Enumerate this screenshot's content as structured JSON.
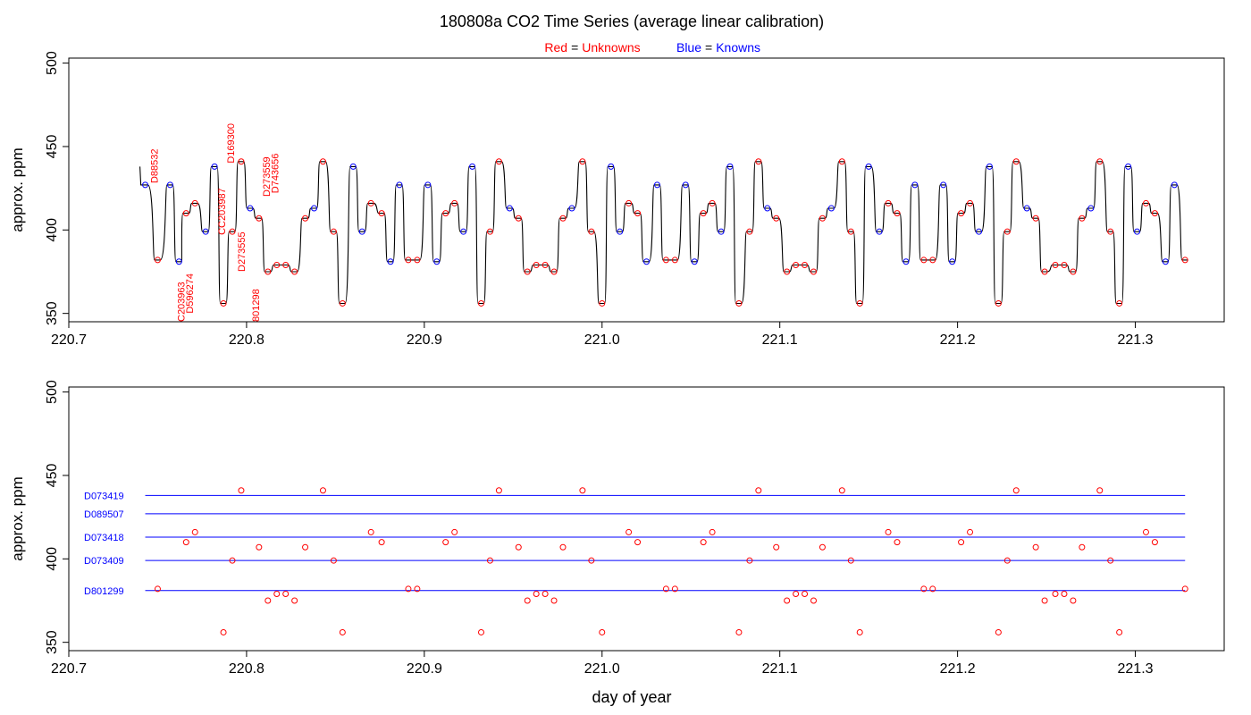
{
  "title": "180808a   CO2 Time Series (average linear calibration)",
  "subtitle": {
    "red_label": "Red",
    "red_text": "Unknowns",
    "blue_label": "Blue",
    "blue_text": "Knowns",
    "equals": "="
  },
  "colors": {
    "unknown": "#ff0000",
    "known": "#0000ff",
    "trace": "#000000"
  },
  "chart_data": [
    {
      "type": "line",
      "panel": "top",
      "xlabel": "",
      "ylabel": "approx. ppm",
      "xlim": [
        220.7,
        221.35
      ],
      "ylim": [
        345,
        503
      ],
      "x_ticks": [
        "220.7",
        "220.8",
        "220.9",
        "221.0",
        "221.1",
        "221.2",
        "221.3"
      ],
      "y_ticks": [
        "350",
        "400",
        "450",
        "500"
      ],
      "grid": false,
      "legend": "none",
      "sequence": [
        {
          "x": 220.743,
          "y": 427,
          "kind": "known"
        },
        {
          "x": 220.75,
          "y": 382,
          "kind": "unknown"
        },
        {
          "x": 220.757,
          "y": 427,
          "kind": "known"
        },
        {
          "x": 220.762,
          "y": 381,
          "kind": "known"
        },
        {
          "x": 220.766,
          "y": 410,
          "kind": "unknown"
        },
        {
          "x": 220.771,
          "y": 416,
          "kind": "unknown"
        },
        {
          "x": 220.777,
          "y": 399,
          "kind": "known"
        },
        {
          "x": 220.782,
          "y": 438,
          "kind": "known"
        },
        {
          "x": 220.787,
          "y": 356,
          "kind": "unknown"
        },
        {
          "x": 220.792,
          "y": 399,
          "kind": "unknown"
        },
        {
          "x": 220.797,
          "y": 441,
          "kind": "unknown"
        },
        {
          "x": 220.802,
          "y": 413,
          "kind": "known"
        },
        {
          "x": 220.807,
          "y": 407,
          "kind": "unknown"
        },
        {
          "x": 220.812,
          "y": 375,
          "kind": "unknown"
        },
        {
          "x": 220.817,
          "y": 379,
          "kind": "unknown"
        },
        {
          "x": 220.822,
          "y": 379,
          "kind": "unknown"
        },
        {
          "x": 220.827,
          "y": 375,
          "kind": "unknown"
        },
        {
          "x": 220.833,
          "y": 407,
          "kind": "unknown"
        },
        {
          "x": 220.838,
          "y": 413,
          "kind": "known"
        },
        {
          "x": 220.843,
          "y": 441,
          "kind": "unknown"
        },
        {
          "x": 220.849,
          "y": 399,
          "kind": "unknown"
        },
        {
          "x": 220.854,
          "y": 356,
          "kind": "unknown"
        },
        {
          "x": 220.86,
          "y": 438,
          "kind": "known"
        },
        {
          "x": 220.865,
          "y": 399,
          "kind": "known"
        },
        {
          "x": 220.87,
          "y": 416,
          "kind": "unknown"
        },
        {
          "x": 220.876,
          "y": 410,
          "kind": "unknown"
        },
        {
          "x": 220.881,
          "y": 381,
          "kind": "known"
        },
        {
          "x": 220.886,
          "y": 427,
          "kind": "known"
        },
        {
          "x": 220.891,
          "y": 382,
          "kind": "unknown"
        },
        {
          "x": 220.896,
          "y": 382,
          "kind": "unknown"
        },
        {
          "x": 220.902,
          "y": 427,
          "kind": "known"
        },
        {
          "x": 220.907,
          "y": 381,
          "kind": "known"
        },
        {
          "x": 220.912,
          "y": 410,
          "kind": "unknown"
        },
        {
          "x": 220.917,
          "y": 416,
          "kind": "unknown"
        },
        {
          "x": 220.922,
          "y": 399,
          "kind": "known"
        },
        {
          "x": 220.927,
          "y": 438,
          "kind": "known"
        },
        {
          "x": 220.932,
          "y": 356,
          "kind": "unknown"
        },
        {
          "x": 220.937,
          "y": 399,
          "kind": "unknown"
        },
        {
          "x": 220.942,
          "y": 441,
          "kind": "unknown"
        },
        {
          "x": 220.948,
          "y": 413,
          "kind": "known"
        },
        {
          "x": 220.953,
          "y": 407,
          "kind": "unknown"
        },
        {
          "x": 220.958,
          "y": 375,
          "kind": "unknown"
        },
        {
          "x": 220.963,
          "y": 379,
          "kind": "unknown"
        },
        {
          "x": 220.968,
          "y": 379,
          "kind": "unknown"
        },
        {
          "x": 220.973,
          "y": 375,
          "kind": "unknown"
        },
        {
          "x": 220.978,
          "y": 407,
          "kind": "unknown"
        },
        {
          "x": 220.983,
          "y": 413,
          "kind": "known"
        },
        {
          "x": 220.989,
          "y": 441,
          "kind": "unknown"
        },
        {
          "x": 220.994,
          "y": 399,
          "kind": "unknown"
        },
        {
          "x": 221.0,
          "y": 356,
          "kind": "unknown"
        },
        {
          "x": 221.005,
          "y": 438,
          "kind": "known"
        },
        {
          "x": 221.01,
          "y": 399,
          "kind": "known"
        },
        {
          "x": 221.015,
          "y": 416,
          "kind": "unknown"
        },
        {
          "x": 221.02,
          "y": 410,
          "kind": "unknown"
        },
        {
          "x": 221.025,
          "y": 381,
          "kind": "known"
        },
        {
          "x": 221.031,
          "y": 427,
          "kind": "known"
        },
        {
          "x": 221.036,
          "y": 382,
          "kind": "unknown"
        },
        {
          "x": 221.041,
          "y": 382,
          "kind": "unknown"
        },
        {
          "x": 221.047,
          "y": 427,
          "kind": "known"
        },
        {
          "x": 221.052,
          "y": 381,
          "kind": "known"
        },
        {
          "x": 221.057,
          "y": 410,
          "kind": "unknown"
        },
        {
          "x": 221.062,
          "y": 416,
          "kind": "unknown"
        },
        {
          "x": 221.067,
          "y": 399,
          "kind": "known"
        },
        {
          "x": 221.072,
          "y": 438,
          "kind": "known"
        },
        {
          "x": 221.077,
          "y": 356,
          "kind": "unknown"
        },
        {
          "x": 221.083,
          "y": 399,
          "kind": "unknown"
        },
        {
          "x": 221.088,
          "y": 441,
          "kind": "unknown"
        },
        {
          "x": 221.093,
          "y": 413,
          "kind": "known"
        },
        {
          "x": 221.098,
          "y": 407,
          "kind": "unknown"
        },
        {
          "x": 221.104,
          "y": 375,
          "kind": "unknown"
        },
        {
          "x": 221.109,
          "y": 379,
          "kind": "unknown"
        },
        {
          "x": 221.114,
          "y": 379,
          "kind": "unknown"
        },
        {
          "x": 221.119,
          "y": 375,
          "kind": "unknown"
        },
        {
          "x": 221.124,
          "y": 407,
          "kind": "unknown"
        },
        {
          "x": 221.129,
          "y": 413,
          "kind": "known"
        },
        {
          "x": 221.135,
          "y": 441,
          "kind": "unknown"
        },
        {
          "x": 221.14,
          "y": 399,
          "kind": "unknown"
        },
        {
          "x": 221.145,
          "y": 356,
          "kind": "unknown"
        },
        {
          "x": 221.15,
          "y": 438,
          "kind": "known"
        },
        {
          "x": 221.156,
          "y": 399,
          "kind": "known"
        },
        {
          "x": 221.161,
          "y": 416,
          "kind": "unknown"
        },
        {
          "x": 221.166,
          "y": 410,
          "kind": "unknown"
        },
        {
          "x": 221.171,
          "y": 381,
          "kind": "known"
        },
        {
          "x": 221.176,
          "y": 427,
          "kind": "known"
        },
        {
          "x": 221.181,
          "y": 382,
          "kind": "unknown"
        },
        {
          "x": 221.186,
          "y": 382,
          "kind": "unknown"
        },
        {
          "x": 221.192,
          "y": 427,
          "kind": "known"
        },
        {
          "x": 221.197,
          "y": 381,
          "kind": "known"
        },
        {
          "x": 221.202,
          "y": 410,
          "kind": "unknown"
        },
        {
          "x": 221.207,
          "y": 416,
          "kind": "unknown"
        },
        {
          "x": 221.212,
          "y": 399,
          "kind": "known"
        },
        {
          "x": 221.218,
          "y": 438,
          "kind": "known"
        },
        {
          "x": 221.223,
          "y": 356,
          "kind": "unknown"
        },
        {
          "x": 221.228,
          "y": 399,
          "kind": "unknown"
        },
        {
          "x": 221.233,
          "y": 441,
          "kind": "unknown"
        },
        {
          "x": 221.239,
          "y": 413,
          "kind": "known"
        },
        {
          "x": 221.244,
          "y": 407,
          "kind": "unknown"
        },
        {
          "x": 221.249,
          "y": 375,
          "kind": "unknown"
        },
        {
          "x": 221.255,
          "y": 379,
          "kind": "unknown"
        },
        {
          "x": 221.26,
          "y": 379,
          "kind": "unknown"
        },
        {
          "x": 221.265,
          "y": 375,
          "kind": "unknown"
        },
        {
          "x": 221.27,
          "y": 407,
          "kind": "unknown"
        },
        {
          "x": 221.275,
          "y": 413,
          "kind": "known"
        },
        {
          "x": 221.28,
          "y": 441,
          "kind": "unknown"
        },
        {
          "x": 221.286,
          "y": 399,
          "kind": "unknown"
        },
        {
          "x": 221.291,
          "y": 356,
          "kind": "unknown"
        },
        {
          "x": 221.296,
          "y": 438,
          "kind": "known"
        },
        {
          "x": 221.301,
          "y": 399,
          "kind": "known"
        },
        {
          "x": 221.306,
          "y": 416,
          "kind": "unknown"
        },
        {
          "x": 221.311,
          "y": 410,
          "kind": "unknown"
        },
        {
          "x": 221.317,
          "y": 381,
          "kind": "known"
        },
        {
          "x": 221.322,
          "y": 427,
          "kind": "known"
        },
        {
          "x": 221.328,
          "y": 382,
          "kind": "unknown"
        }
      ],
      "sample_labels": [
        {
          "text": "D88532",
          "x": 220.75,
          "y": 428
        },
        {
          "text": "C203963",
          "x": 220.765,
          "y": 345
        },
        {
          "text": "D596274",
          "x": 220.77,
          "y": 350
        },
        {
          "text": "CC203987",
          "x": 220.788,
          "y": 397
        },
        {
          "text": "D169300",
          "x": 220.793,
          "y": 440
        },
        {
          "text": "D273555",
          "x": 220.799,
          "y": 375
        },
        {
          "text": "801298",
          "x": 220.807,
          "y": 345
        },
        {
          "text": "D273559",
          "x": 220.813,
          "y": 420
        },
        {
          "text": "D743656",
          "x": 220.818,
          "y": 422
        }
      ]
    },
    {
      "type": "scatter",
      "panel": "bottom",
      "xlabel": "day of year",
      "ylabel": "approx. ppm",
      "xlim": [
        220.7,
        221.35
      ],
      "ylim": [
        345,
        503
      ],
      "x_ticks": [
        "220.7",
        "220.8",
        "220.9",
        "221.0",
        "221.1",
        "221.2",
        "221.3"
      ],
      "y_ticks": [
        "350",
        "400",
        "450",
        "500"
      ],
      "grid": false,
      "legend": "none",
      "reference_lines": [
        {
          "name": "D073419",
          "y": 438,
          "x0": 220.743,
          "x1": 221.328
        },
        {
          "name": "D089507",
          "y": 427,
          "x0": 220.743,
          "x1": 221.328
        },
        {
          "name": "D073418",
          "y": 413,
          "x0": 220.743,
          "x1": 221.328
        },
        {
          "name": "D073409",
          "y": 399,
          "x0": 220.743,
          "x1": 221.328
        },
        {
          "name": "D801299",
          "y": 381,
          "x0": 220.743,
          "x1": 221.328
        }
      ]
    }
  ]
}
